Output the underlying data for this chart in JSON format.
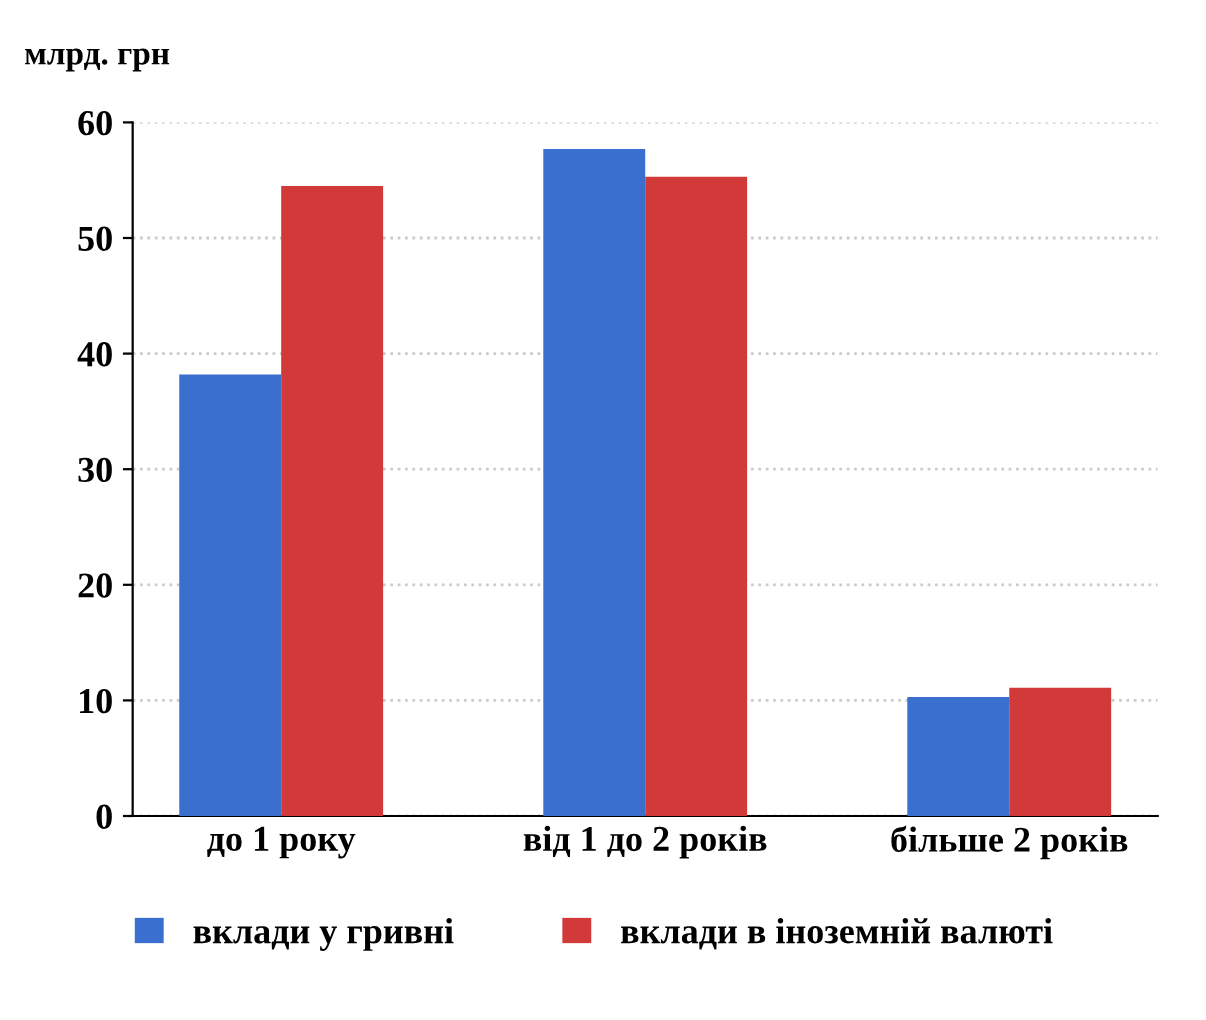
{
  "chart_data": {
    "type": "bar",
    "ylabel": "млрд. грн",
    "categories": [
      "до 1 року",
      "від 1 до 2 років",
      "більше 2 років"
    ],
    "series": [
      {
        "name": "вклади у гривні",
        "color": "#3a6fcf",
        "values": [
          38.2,
          57.7,
          10.3
        ]
      },
      {
        "name": "вклади в іноземній валюті",
        "color": "#d23a3a",
        "values": [
          54.5,
          55.3,
          11.1
        ]
      }
    ],
    "ylim": [
      0,
      60
    ],
    "yticks": [
      0,
      10,
      20,
      30,
      40,
      50,
      60
    ],
    "grid": "y",
    "legend": "bottom"
  }
}
